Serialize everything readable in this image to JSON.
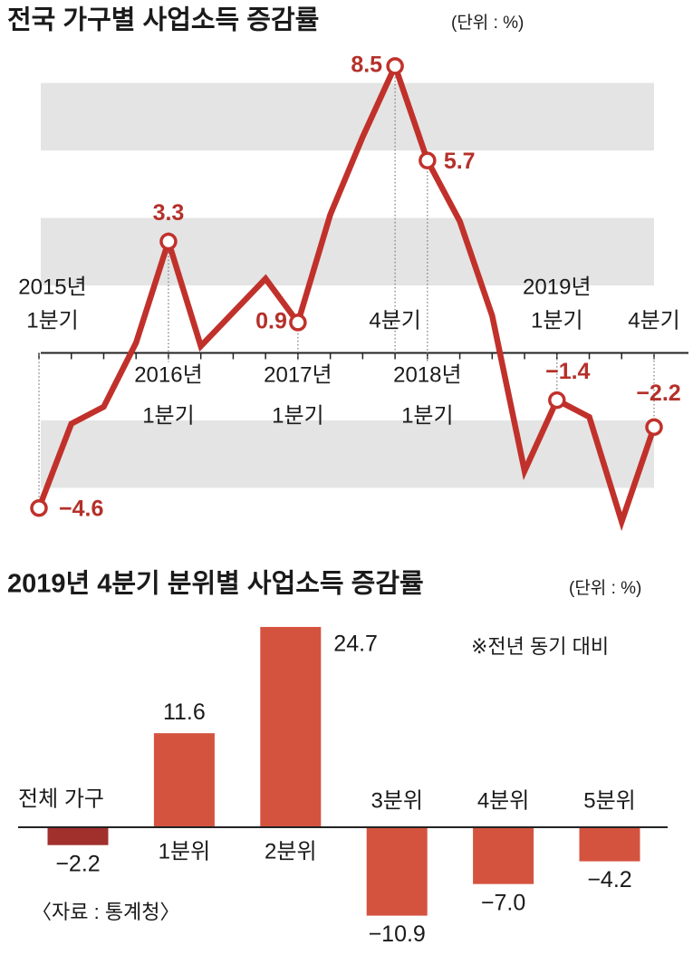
{
  "chart_data": [
    {
      "type": "line",
      "title": "전국 가구별 사업소득 증감률",
      "unit": "(단위 : %)",
      "categories": [
        [
          "2015년",
          "1분기"
        ],
        null,
        null,
        null,
        [
          "2016년",
          "1분기"
        ],
        null,
        null,
        null,
        [
          "2017년",
          "1분기"
        ],
        null,
        null,
        [
          "4분기"
        ],
        [
          "2018년",
          "1분기"
        ],
        null,
        null,
        null,
        [
          "2019년",
          "1분기"
        ],
        null,
        null,
        [
          "4분기"
        ]
      ],
      "values": [
        -4.6,
        -2.1,
        -1.6,
        0.3,
        3.3,
        0.2,
        1.2,
        2.2,
        0.9,
        4.1,
        6.4,
        8.5,
        5.7,
        3.9,
        1.1,
        -3.5,
        -1.4,
        -1.9,
        -5.0,
        -2.2
      ],
      "value_labels": [
        "−4.6",
        null,
        null,
        null,
        "3.3",
        null,
        null,
        null,
        "0.9",
        null,
        null,
        "8.5",
        "5.7",
        null,
        null,
        null,
        "−1.4",
        null,
        null,
        "−2.2"
      ],
      "color": "#c1312b",
      "label_color": "#b5302a",
      "grid_bands": [
        [
          6,
          8
        ],
        [
          2,
          4
        ],
        [
          -4,
          -2
        ]
      ],
      "band_color": "#e4e4e4",
      "ylim": [
        -5.6,
        8.9
      ]
    },
    {
      "type": "bar",
      "title": "2019년 4분기 분위별 사업소득 증감률",
      "unit": "(단위 : %)",
      "categories": [
        "전체 가구",
        "1분위",
        "2분위",
        "3분위",
        "4분위",
        "5분위"
      ],
      "values": [
        -2.2,
        11.6,
        24.7,
        -10.9,
        -7.0,
        -4.2
      ],
      "value_labels": [
        "−2.2",
        "11.6",
        "24.7",
        "−10.9",
        "−7.0",
        "−4.2"
      ],
      "colors": [
        "#a1302c",
        "#d4533f",
        "#d4533f",
        "#d4533f",
        "#d4533f",
        "#d4533f"
      ],
      "note": "※전년 동기 대비",
      "source": "〈자료 : 통계청〉",
      "ylim": [
        -12.5,
        27
      ]
    }
  ]
}
